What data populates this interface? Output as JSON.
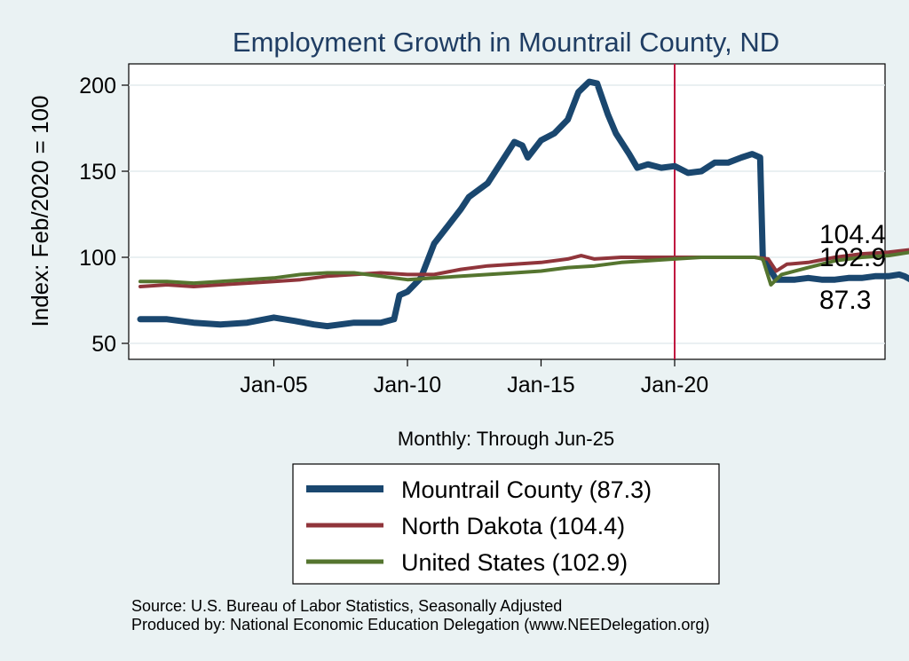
{
  "chart_data": {
    "type": "line",
    "title": "Employment Growth in Mountrail  County, ND",
    "ylabel": "Index: Feb/2020 = 100",
    "xlabel": "Monthly: Through Jun-25",
    "x_start": 2000.0,
    "ylim": [
      40,
      212
    ],
    "yticks": [
      50,
      100,
      150,
      200
    ],
    "ytick_labels": [
      "50",
      "100",
      "150",
      "200"
    ],
    "xticks": [
      2005,
      2010,
      2015,
      2020
    ],
    "xtick_labels": [
      "Jan-05",
      "Jan-10",
      "Jan-15",
      "Jan-20"
    ],
    "xlim": [
      2000,
      2029.3
    ],
    "vline_x": 2020,
    "grid": true,
    "legend_position": "bottom",
    "series": [
      {
        "name": "Mountrail  County (87.3)",
        "color": "#1a476f",
        "end_label": "87.3",
        "points": [
          [
            2000.0,
            64
          ],
          [
            2001.0,
            64
          ],
          [
            2002.0,
            62
          ],
          [
            2003.0,
            61
          ],
          [
            2004.0,
            62
          ],
          [
            2005.0,
            65
          ],
          [
            2005.8,
            63
          ],
          [
            2006.5,
            61
          ],
          [
            2007.0,
            60
          ],
          [
            2008.0,
            62
          ],
          [
            2008.5,
            62
          ],
          [
            2009.0,
            62
          ],
          [
            2009.5,
            64
          ],
          [
            2009.7,
            78
          ],
          [
            2010.0,
            80
          ],
          [
            2010.5,
            88
          ],
          [
            2010.8,
            100
          ],
          [
            2011.0,
            108
          ],
          [
            2011.5,
            118
          ],
          [
            2012.0,
            128
          ],
          [
            2012.3,
            135
          ],
          [
            2013.0,
            143
          ],
          [
            2013.5,
            155
          ],
          [
            2014.0,
            167
          ],
          [
            2014.3,
            165
          ],
          [
            2014.5,
            158
          ],
          [
            2015.0,
            168
          ],
          [
            2015.5,
            172
          ],
          [
            2016.0,
            180
          ],
          [
            2016.4,
            196
          ],
          [
            2016.8,
            202
          ],
          [
            2017.1,
            201
          ],
          [
            2017.5,
            183
          ],
          [
            2017.8,
            172
          ],
          [
            2018.3,
            160
          ],
          [
            2018.6,
            152
          ],
          [
            2019.0,
            154
          ],
          [
            2019.5,
            152
          ],
          [
            2020.0,
            153
          ],
          [
            2020.5,
            149
          ],
          [
            2021.0,
            150
          ],
          [
            2021.5,
            155
          ],
          [
            2022.0,
            155
          ],
          [
            2022.5,
            158
          ],
          [
            2022.9,
            160
          ],
          [
            2023.2,
            158
          ],
          [
            2023.3,
            100
          ],
          [
            2023.8,
            87
          ],
          [
            2024.5,
            87
          ],
          [
            2025.0,
            88
          ],
          [
            2025.5,
            87
          ],
          [
            2026.0,
            87
          ],
          [
            2026.5,
            88
          ],
          [
            2027.0,
            88
          ],
          [
            2027.5,
            89
          ],
          [
            2028.0,
            89
          ],
          [
            2028.4,
            90
          ],
          [
            2028.6,
            89
          ],
          [
            2028.8,
            87.3
          ]
        ]
      },
      {
        "name": "North Dakota (104.4)",
        "color": "#90353b",
        "end_label": "104.4",
        "points": [
          [
            2000.0,
            83
          ],
          [
            2001.0,
            84
          ],
          [
            2002.0,
            83
          ],
          [
            2003.0,
            84
          ],
          [
            2004.0,
            85
          ],
          [
            2005.0,
            86
          ],
          [
            2006.0,
            87
          ],
          [
            2007.0,
            89
          ],
          [
            2008.0,
            90
          ],
          [
            2009.0,
            91
          ],
          [
            2010.0,
            90
          ],
          [
            2011.0,
            90
          ],
          [
            2012.0,
            93
          ],
          [
            2013.0,
            95
          ],
          [
            2014.0,
            96
          ],
          [
            2015.0,
            97
          ],
          [
            2016.0,
            99
          ],
          [
            2016.5,
            101
          ],
          [
            2017.0,
            99
          ],
          [
            2018.0,
            100
          ],
          [
            2019.0,
            100
          ],
          [
            2020.0,
            100
          ],
          [
            2021.0,
            100
          ],
          [
            2022.0,
            100
          ],
          [
            2023.0,
            100
          ],
          [
            2023.5,
            99
          ],
          [
            2023.8,
            92
          ],
          [
            2024.2,
            96
          ],
          [
            2025.0,
            97
          ],
          [
            2026.0,
            100
          ],
          [
            2027.0,
            102
          ],
          [
            2028.0,
            103
          ],
          [
            2028.8,
            104.4
          ]
        ]
      },
      {
        "name": "United States (102.9)",
        "color": "#55752f",
        "end_label": "102.9",
        "points": [
          [
            2000.0,
            86
          ],
          [
            2001.0,
            86
          ],
          [
            2002.0,
            85
          ],
          [
            2003.0,
            86
          ],
          [
            2004.0,
            87
          ],
          [
            2005.0,
            88
          ],
          [
            2006.0,
            90
          ],
          [
            2007.0,
            91
          ],
          [
            2008.0,
            91
          ],
          [
            2009.0,
            89
          ],
          [
            2010.0,
            87
          ],
          [
            2011.0,
            88
          ],
          [
            2012.0,
            89
          ],
          [
            2013.0,
            90
          ],
          [
            2014.0,
            91
          ],
          [
            2015.0,
            92
          ],
          [
            2016.0,
            94
          ],
          [
            2017.0,
            95
          ],
          [
            2018.0,
            97
          ],
          [
            2019.0,
            98
          ],
          [
            2020.0,
            99
          ],
          [
            2021.0,
            100
          ],
          [
            2022.0,
            100
          ],
          [
            2023.0,
            100
          ],
          [
            2023.3,
            99
          ],
          [
            2023.6,
            84
          ],
          [
            2024.0,
            90
          ],
          [
            2025.0,
            94
          ],
          [
            2026.0,
            98
          ],
          [
            2027.0,
            100
          ],
          [
            2028.0,
            101
          ],
          [
            2028.8,
            102.9
          ]
        ]
      }
    ]
  },
  "footer": {
    "source": "Source: U.S. Bureau of Labor Statistics, Seasonally Adjusted",
    "producer": "Produced by: National Economic Education Delegation (www.NEEDelegation.org)"
  }
}
